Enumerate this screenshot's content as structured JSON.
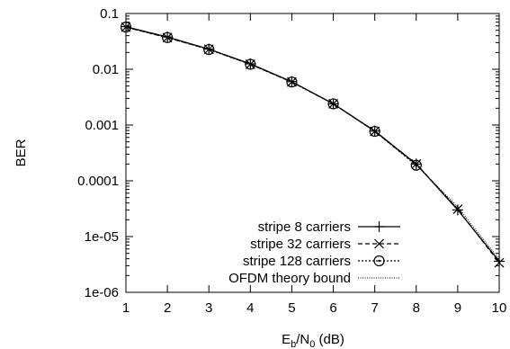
{
  "chart_data": {
    "type": "line",
    "xlabel_main": "E",
    "xlabel_sub1": "b",
    "xlabel_mid": "/N",
    "xlabel_sub2": "0",
    "xlabel_tail": " (dB)",
    "ylabel": "BER",
    "xlim": [
      1,
      10
    ],
    "ylim": [
      1e-06,
      0.1
    ],
    "yscale": "log",
    "x_ticks": [
      1,
      2,
      3,
      4,
      5,
      6,
      7,
      8,
      9,
      10
    ],
    "y_ticks": [
      "1e-06",
      "1e-05",
      "0.0001",
      "0.001",
      "0.01",
      "0.1"
    ],
    "legend_position": "bottom-right",
    "series": [
      {
        "name": "stripe 8 carriers",
        "line_style": "solid",
        "marker": "plus",
        "x": [
          1,
          2,
          3,
          4,
          5,
          6,
          7,
          8,
          9,
          10
        ],
        "y": [
          0.058,
          0.038,
          0.023,
          0.0125,
          0.006,
          0.0024,
          0.00078,
          0.0002,
          3e-05,
          3.6e-06
        ]
      },
      {
        "name": "stripe 32 carriers",
        "line_style": "dashed",
        "marker": "cross",
        "x": [
          1,
          2,
          3,
          4,
          5,
          6,
          7,
          8,
          9,
          10
        ],
        "y": [
          0.057,
          0.037,
          0.0228,
          0.0123,
          0.0059,
          0.0024,
          0.00077,
          0.0002,
          3.1e-05,
          3.4e-06
        ]
      },
      {
        "name": "stripe 128 carriers",
        "line_style": "dotted",
        "marker": "circle-dot",
        "x": [
          1,
          2,
          3,
          4,
          5,
          6,
          7,
          8
        ],
        "y": [
          0.057,
          0.037,
          0.0226,
          0.0123,
          0.0059,
          0.0024,
          0.00077,
          0.00019
        ]
      },
      {
        "name": "OFDM theory bound",
        "line_style": "fine-dotted",
        "marker": "none",
        "x": [
          1,
          2,
          3,
          4,
          5,
          6,
          7,
          8,
          9,
          10
        ],
        "y": [
          0.056,
          0.0375,
          0.0229,
          0.0125,
          0.006,
          0.0024,
          0.00077,
          0.00019,
          3.4e-05,
          3.9e-06
        ]
      }
    ]
  }
}
